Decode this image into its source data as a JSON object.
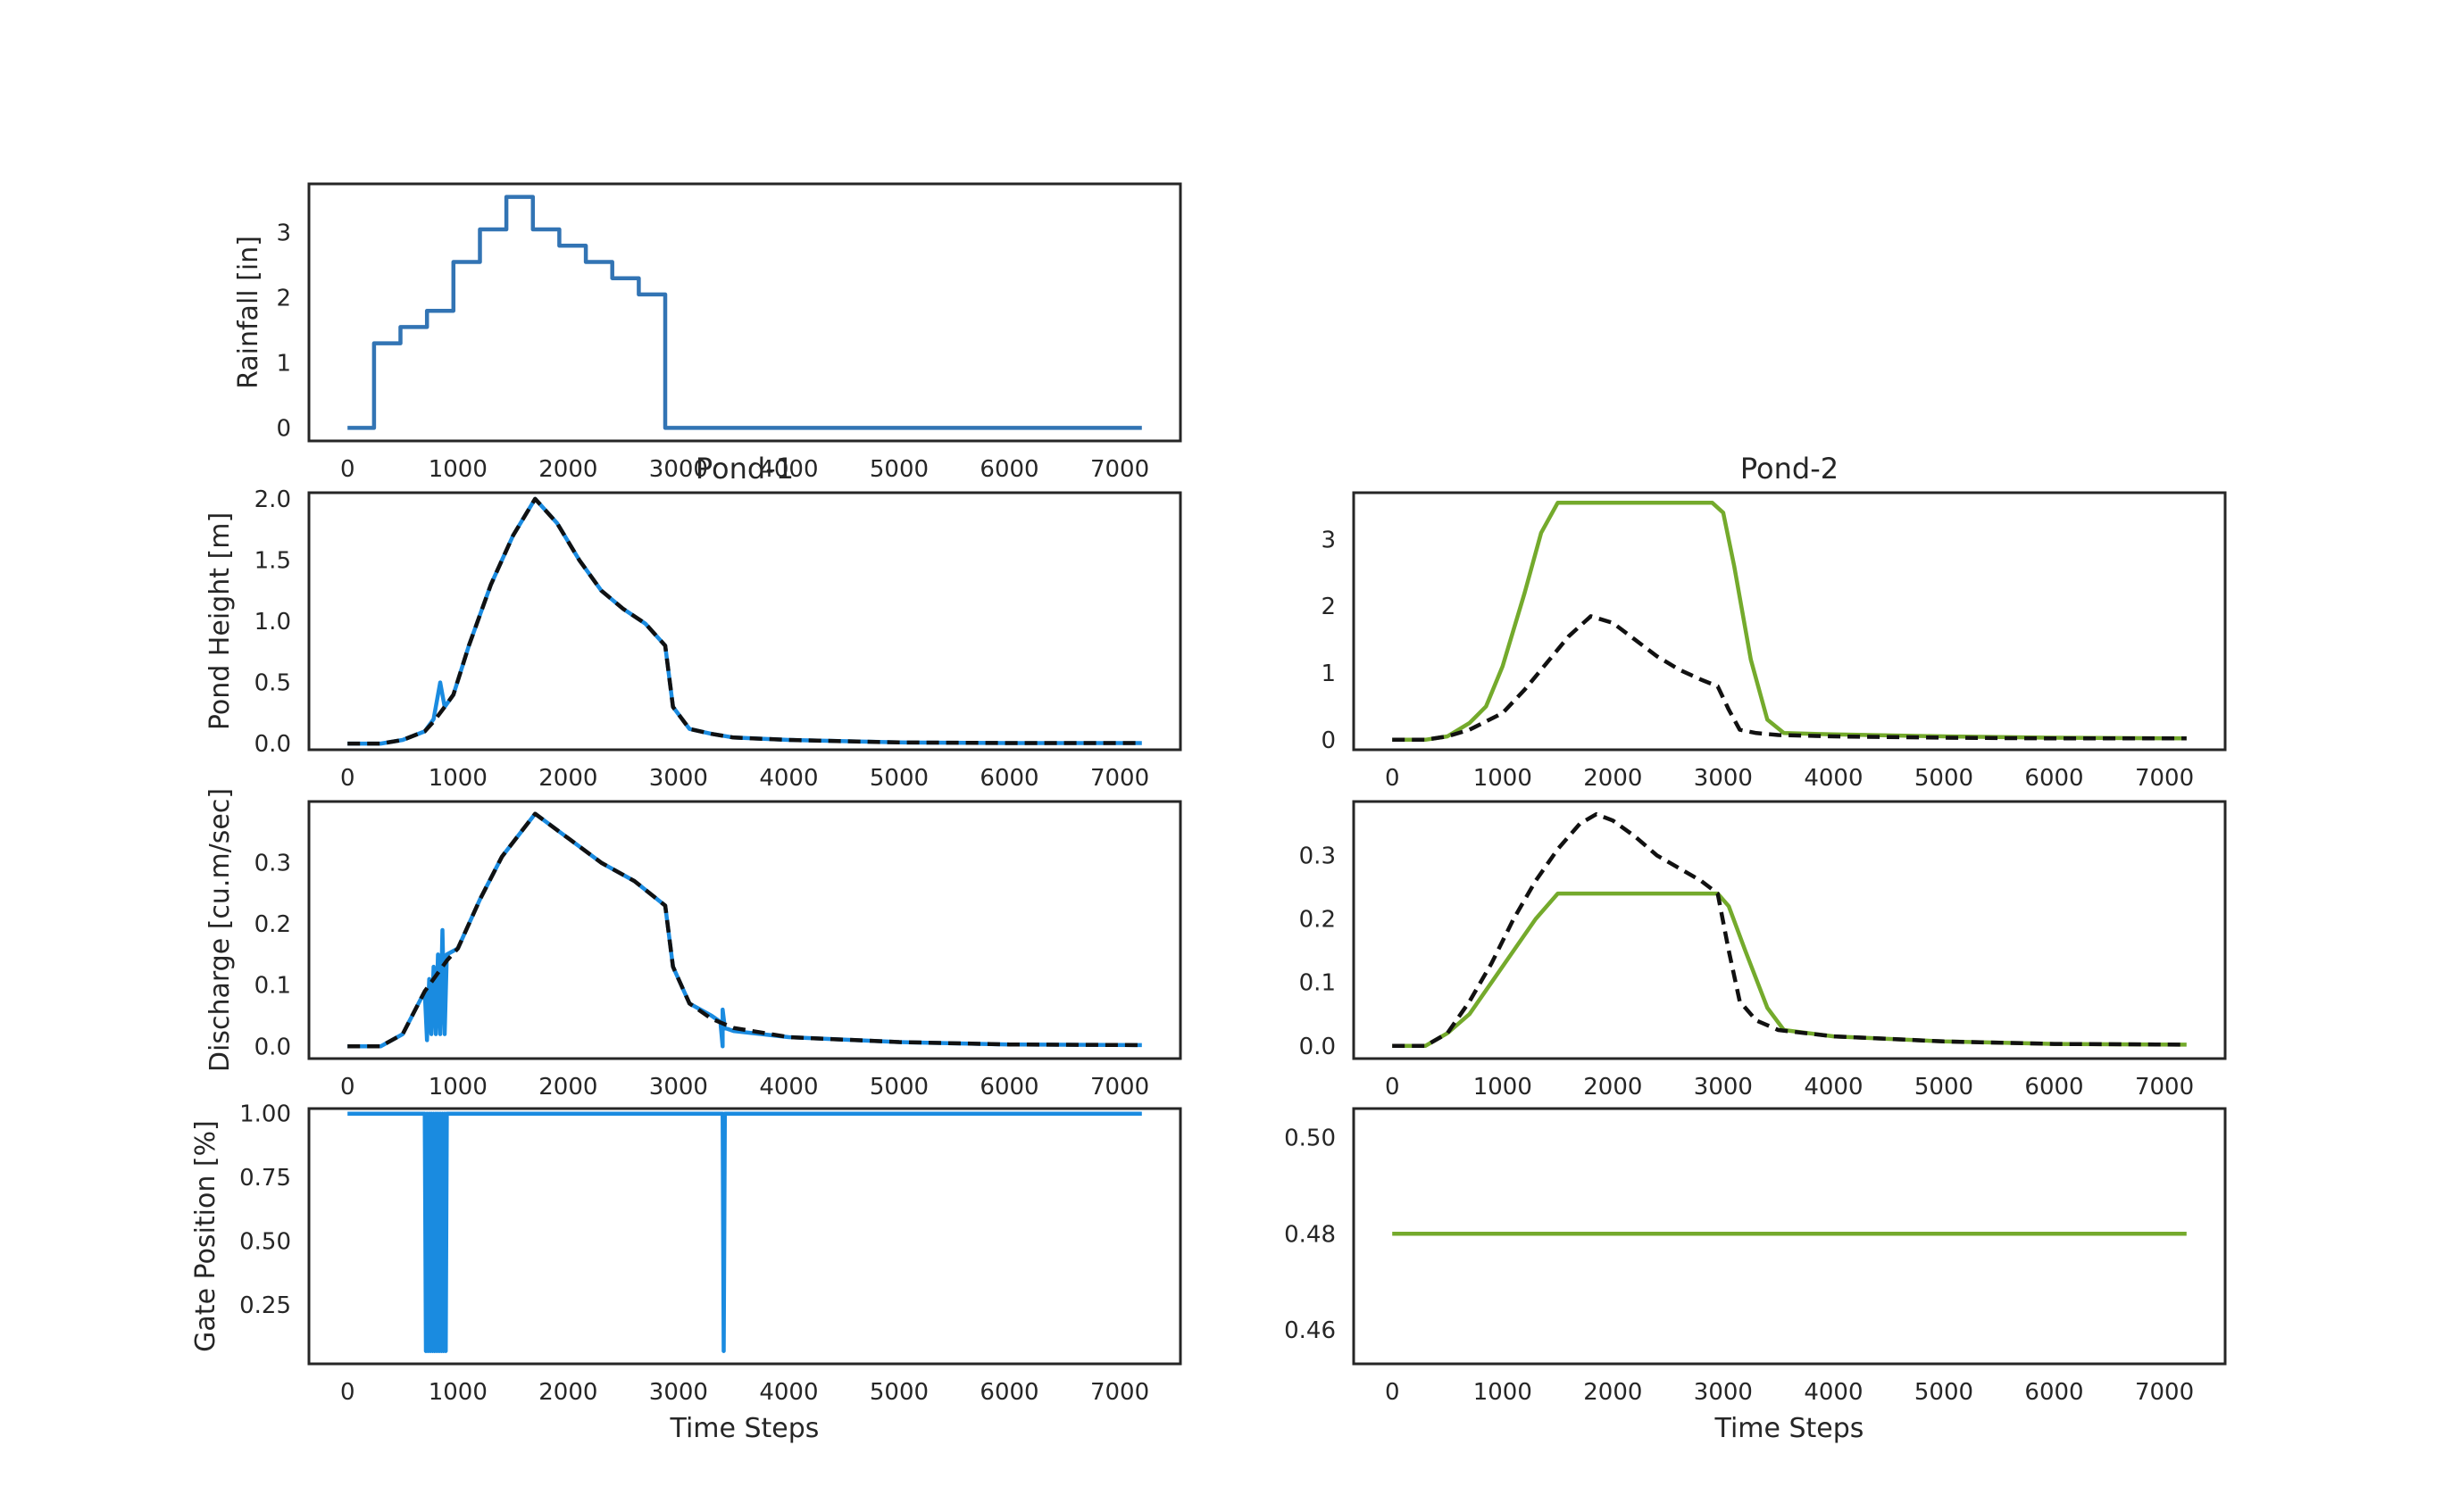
{
  "chart_data": [
    {
      "id": "rainfall",
      "type": "line",
      "title": "",
      "xlabel": "",
      "ylabel": "Rainfall [in]",
      "xlim": [
        -350,
        7550
      ],
      "ylim": [
        -0.2,
        3.75
      ],
      "xticks": [
        0,
        1000,
        2000,
        3000,
        4000,
        5000,
        6000,
        7000
      ],
      "yticks": [
        0,
        1,
        2,
        3
      ],
      "ytick_labels": [
        "0",
        "1",
        "2",
        "3"
      ],
      "grid": false,
      "series": [
        {
          "color": "#3274b4",
          "dash": false,
          "x": [
            0,
            240,
            240,
            480,
            480,
            720,
            720,
            960,
            960,
            1200,
            1200,
            1440,
            1440,
            1680,
            1680,
            1920,
            1920,
            2160,
            2160,
            2400,
            2400,
            2640,
            2640,
            2880,
            2880,
            7200
          ],
          "y": [
            0,
            0,
            1.3,
            1.3,
            1.55,
            1.55,
            1.8,
            1.8,
            2.55,
            2.55,
            3.05,
            3.05,
            3.55,
            3.55,
            3.05,
            3.05,
            2.8,
            2.8,
            2.55,
            2.55,
            2.3,
            2.3,
            2.05,
            2.05,
            0,
            0
          ]
        }
      ]
    },
    {
      "id": "pond1-height",
      "type": "line",
      "title": "Pond-1",
      "xlabel": "",
      "ylabel": "Pond Height [m]",
      "xlim": [
        -350,
        7550
      ],
      "ylim": [
        -0.05,
        2.05
      ],
      "xticks": [
        0,
        1000,
        2000,
        3000,
        4000,
        5000,
        6000,
        7000
      ],
      "yticks": [
        0,
        0.5,
        1.0,
        1.5,
        2.0
      ],
      "ytick_labels": [
        "0.0",
        "0.5",
        "1.0",
        "1.5",
        "2.0"
      ],
      "grid": false,
      "series": [
        {
          "color": "#1a8be0",
          "dash": false,
          "x": [
            0,
            300,
            500,
            700,
            780,
            840,
            880,
            960,
            1100,
            1300,
            1500,
            1700,
            1900,
            2100,
            2300,
            2500,
            2700,
            2880,
            2950,
            3100,
            3300,
            3500,
            4000,
            5000,
            6000,
            7200
          ],
          "y": [
            0,
            0,
            0.03,
            0.1,
            0.2,
            0.5,
            0.3,
            0.4,
            0.8,
            1.3,
            1.7,
            2.0,
            1.8,
            1.5,
            1.25,
            1.1,
            0.98,
            0.8,
            0.3,
            0.12,
            0.08,
            0.05,
            0.03,
            0.01,
            0.005,
            0.005
          ]
        },
        {
          "color": "#111111",
          "dash": true,
          "x": [
            0,
            300,
            500,
            700,
            780,
            880,
            960,
            1100,
            1300,
            1500,
            1700,
            1900,
            2100,
            2300,
            2500,
            2700,
            2880,
            2950,
            3100,
            3300,
            3500,
            4000,
            5000,
            6000,
            7200
          ],
          "y": [
            0,
            0,
            0.03,
            0.1,
            0.18,
            0.3,
            0.4,
            0.8,
            1.3,
            1.7,
            2.0,
            1.8,
            1.5,
            1.25,
            1.1,
            0.98,
            0.8,
            0.3,
            0.12,
            0.08,
            0.05,
            0.03,
            0.01,
            0.005,
            0.005
          ]
        }
      ]
    },
    {
      "id": "pond2-height",
      "type": "line",
      "title": "Pond-2",
      "xlabel": "",
      "ylabel": "",
      "xlim": [
        -350,
        7550
      ],
      "ylim": [
        -0.15,
        3.7
      ],
      "xticks": [
        0,
        1000,
        2000,
        3000,
        4000,
        5000,
        6000,
        7000
      ],
      "yticks": [
        0,
        1,
        2,
        3
      ],
      "ytick_labels": [
        "0",
        "1",
        "2",
        "3"
      ],
      "grid": false,
      "series": [
        {
          "color": "#74aa2c",
          "dash": false,
          "x": [
            0,
            300,
            500,
            700,
            850,
            1000,
            1200,
            1350,
            1500,
            2000,
            2500,
            2900,
            3000,
            3100,
            3250,
            3400,
            3550,
            4000,
            5000,
            6000,
            7200
          ],
          "y": [
            0,
            0,
            0.05,
            0.25,
            0.5,
            1.1,
            2.2,
            3.1,
            3.55,
            3.55,
            3.55,
            3.55,
            3.4,
            2.6,
            1.2,
            0.3,
            0.1,
            0.08,
            0.05,
            0.03,
            0.02
          ]
        },
        {
          "color": "#111111",
          "dash": true,
          "x": [
            0,
            300,
            500,
            700,
            1000,
            1200,
            1400,
            1600,
            1800,
            2000,
            2200,
            2400,
            2600,
            2800,
            2950,
            3050,
            3150,
            3300,
            3500,
            4000,
            5000,
            6000,
            7200
          ],
          "y": [
            0,
            0,
            0.05,
            0.15,
            0.4,
            0.75,
            1.15,
            1.55,
            1.85,
            1.75,
            1.5,
            1.25,
            1.05,
            0.9,
            0.8,
            0.45,
            0.15,
            0.1,
            0.07,
            0.05,
            0.03,
            0.02,
            0.02
          ]
        }
      ]
    },
    {
      "id": "pond1-discharge",
      "type": "line",
      "title": "",
      "xlabel": "",
      "ylabel": "Discharge [cu.m/sec]",
      "xlim": [
        -350,
        7550
      ],
      "ylim": [
        -0.02,
        0.4
      ],
      "xticks": [
        0,
        1000,
        2000,
        3000,
        4000,
        5000,
        6000,
        7000
      ],
      "yticks": [
        0,
        0.1,
        0.2,
        0.3
      ],
      "ytick_labels": [
        "0.0",
        "0.1",
        "0.2",
        "0.3"
      ],
      "grid": false,
      "series": [
        {
          "color": "#1a8be0",
          "dash": false,
          "x": [
            0,
            300,
            500,
            700,
            720,
            740,
            760,
            780,
            800,
            820,
            840,
            860,
            880,
            900,
            1000,
            1200,
            1400,
            1700,
            2000,
            2300,
            2600,
            2880,
            2950,
            3100,
            3300,
            3380,
            3400,
            3400,
            3420,
            3500,
            4000,
            5000,
            6000,
            7200
          ],
          "y": [
            0,
            0,
            0.02,
            0.09,
            0.01,
            0.11,
            0.02,
            0.13,
            0.02,
            0.15,
            0.02,
            0.19,
            0.02,
            0.15,
            0.16,
            0.24,
            0.31,
            0.38,
            0.34,
            0.3,
            0.27,
            0.23,
            0.13,
            0.07,
            0.05,
            0.04,
            0.0,
            0.06,
            0.03,
            0.025,
            0.015,
            0.007,
            0.003,
            0.002
          ]
        },
        {
          "color": "#111111",
          "dash": true,
          "x": [
            0,
            300,
            500,
            700,
            900,
            1000,
            1200,
            1400,
            1700,
            2000,
            2300,
            2600,
            2880,
            2950,
            3100,
            3300,
            3500,
            4000,
            5000,
            6000,
            7200
          ],
          "y": [
            0,
            0,
            0.02,
            0.09,
            0.14,
            0.16,
            0.24,
            0.31,
            0.38,
            0.34,
            0.3,
            0.27,
            0.23,
            0.13,
            0.07,
            0.045,
            0.03,
            0.015,
            0.007,
            0.003,
            0.002
          ]
        }
      ]
    },
    {
      "id": "pond2-discharge",
      "type": "line",
      "title": "",
      "xlabel": "",
      "ylabel": "",
      "xlim": [
        -350,
        7550
      ],
      "ylim": [
        -0.02,
        0.385
      ],
      "xticks": [
        0,
        1000,
        2000,
        3000,
        4000,
        5000,
        6000,
        7000
      ],
      "yticks": [
        0,
        0.1,
        0.2,
        0.3
      ],
      "ytick_labels": [
        "0.0",
        "0.1",
        "0.2",
        "0.3"
      ],
      "grid": false,
      "series": [
        {
          "color": "#74aa2c",
          "dash": false,
          "x": [
            0,
            300,
            500,
            700,
            900,
            1100,
            1300,
            1500,
            2000,
            2500,
            2950,
            3050,
            3200,
            3400,
            3550,
            4000,
            5000,
            6000,
            7200
          ],
          "y": [
            0,
            0,
            0.02,
            0.05,
            0.1,
            0.15,
            0.2,
            0.24,
            0.24,
            0.24,
            0.24,
            0.22,
            0.15,
            0.06,
            0.025,
            0.015,
            0.007,
            0.003,
            0.002
          ]
        },
        {
          "color": "#111111",
          "dash": true,
          "x": [
            0,
            300,
            500,
            700,
            900,
            1100,
            1300,
            1500,
            1700,
            1850,
            2000,
            2200,
            2400,
            2600,
            2800,
            2950,
            3050,
            3150,
            3300,
            3500,
            4000,
            5000,
            6000,
            7200
          ],
          "y": [
            0,
            0,
            0.02,
            0.07,
            0.13,
            0.2,
            0.26,
            0.31,
            0.35,
            0.365,
            0.355,
            0.33,
            0.3,
            0.28,
            0.26,
            0.24,
            0.15,
            0.07,
            0.04,
            0.025,
            0.015,
            0.007,
            0.003,
            0.002
          ]
        }
      ]
    },
    {
      "id": "pond1-gate",
      "type": "line",
      "title": "",
      "xlabel": "Time Steps",
      "ylabel": "Gate Position [%]",
      "xlim": [
        -350,
        7550
      ],
      "ylim": [
        0.02,
        1.02
      ],
      "xticks": [
        0,
        1000,
        2000,
        3000,
        4000,
        5000,
        6000,
        7000
      ],
      "yticks": [
        0.25,
        0.5,
        0.75,
        1.0
      ],
      "ytick_labels": [
        "0.25",
        "0.50",
        "0.75",
        "1.00"
      ],
      "grid": false,
      "series": [
        {
          "color": "#1a8be0",
          "dash": false,
          "x": [
            0,
            700,
            710,
            720,
            730,
            740,
            750,
            760,
            770,
            780,
            790,
            800,
            810,
            820,
            830,
            840,
            850,
            860,
            870,
            880,
            890,
            900,
            3400,
            3410,
            3420,
            7200
          ],
          "y": [
            1,
            1,
            0.07,
            1,
            0.07,
            1,
            0.07,
            1,
            0.07,
            1,
            0.07,
            1,
            0.07,
            1,
            0.07,
            1,
            0.07,
            1,
            0.07,
            1,
            0.07,
            1,
            1,
            0.07,
            1,
            1
          ]
        }
      ]
    },
    {
      "id": "pond2-gate",
      "type": "line",
      "title": "",
      "xlabel": "Time Steps",
      "ylabel": "",
      "xlim": [
        -350,
        7550
      ],
      "ylim": [
        0.453,
        0.506
      ],
      "xticks": [
        0,
        1000,
        2000,
        3000,
        4000,
        5000,
        6000,
        7000
      ],
      "yticks": [
        0.46,
        0.48,
        0.5
      ],
      "ytick_labels": [
        "0.46",
        "0.48",
        "0.50"
      ],
      "grid": false,
      "series": [
        {
          "color": "#74aa2c",
          "dash": false,
          "x": [
            0,
            7200
          ],
          "y": [
            0.48,
            0.48
          ]
        }
      ]
    }
  ]
}
